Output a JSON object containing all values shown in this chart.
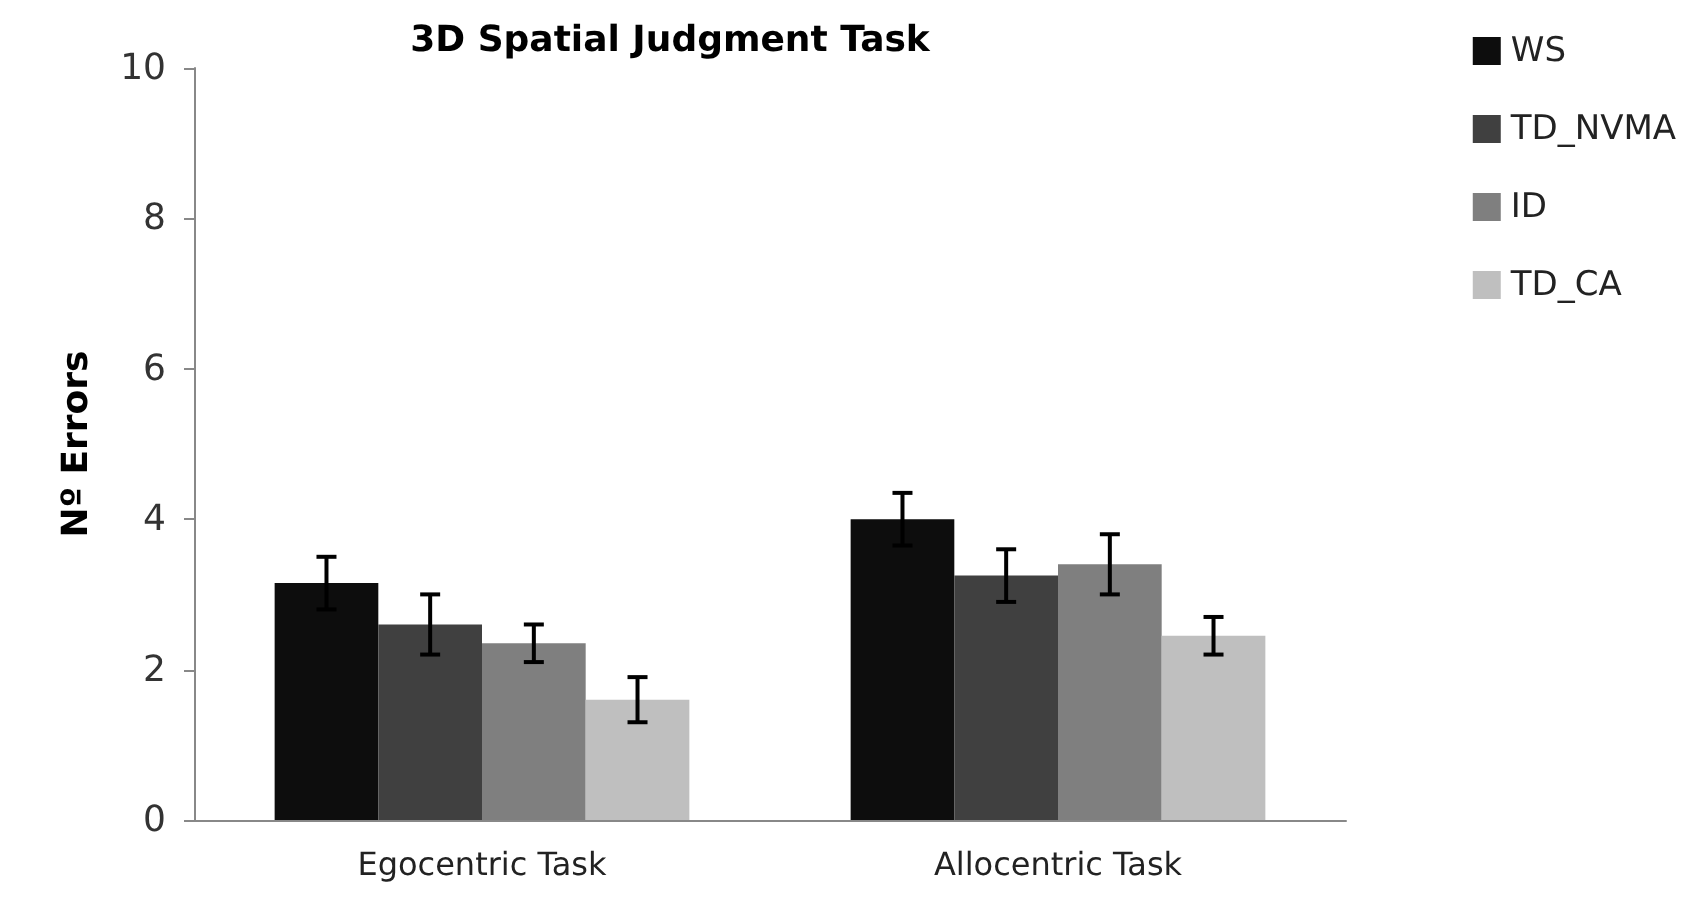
{
  "chart_data": {
    "type": "bar",
    "title": "3D Spatial Judgment Task",
    "ylabel": "Nº Errors",
    "categories": [
      "Egocentric Task",
      "Allocentric Task"
    ],
    "series": [
      {
        "name": "WS",
        "color": "#0d0d0d",
        "values": [
          3.15,
          4.0
        ],
        "errors": [
          0.35,
          0.35
        ]
      },
      {
        "name": "TD_NVMA",
        "color": "#404040",
        "values": [
          2.6,
          3.25
        ],
        "errors": [
          0.4,
          0.35
        ]
      },
      {
        "name": "ID",
        "color": "#7f7f7f",
        "values": [
          2.35,
          3.4
        ],
        "errors": [
          0.25,
          0.4
        ]
      },
      {
        "name": "TD_CA",
        "color": "#bfbfbf",
        "values": [
          1.6,
          2.45
        ],
        "errors": [
          0.3,
          0.25
        ]
      }
    ],
    "ylim": [
      0,
      10
    ],
    "yticks": [
      0,
      2,
      4,
      6,
      8,
      10
    ],
    "grid": false,
    "legend": "top right"
  }
}
